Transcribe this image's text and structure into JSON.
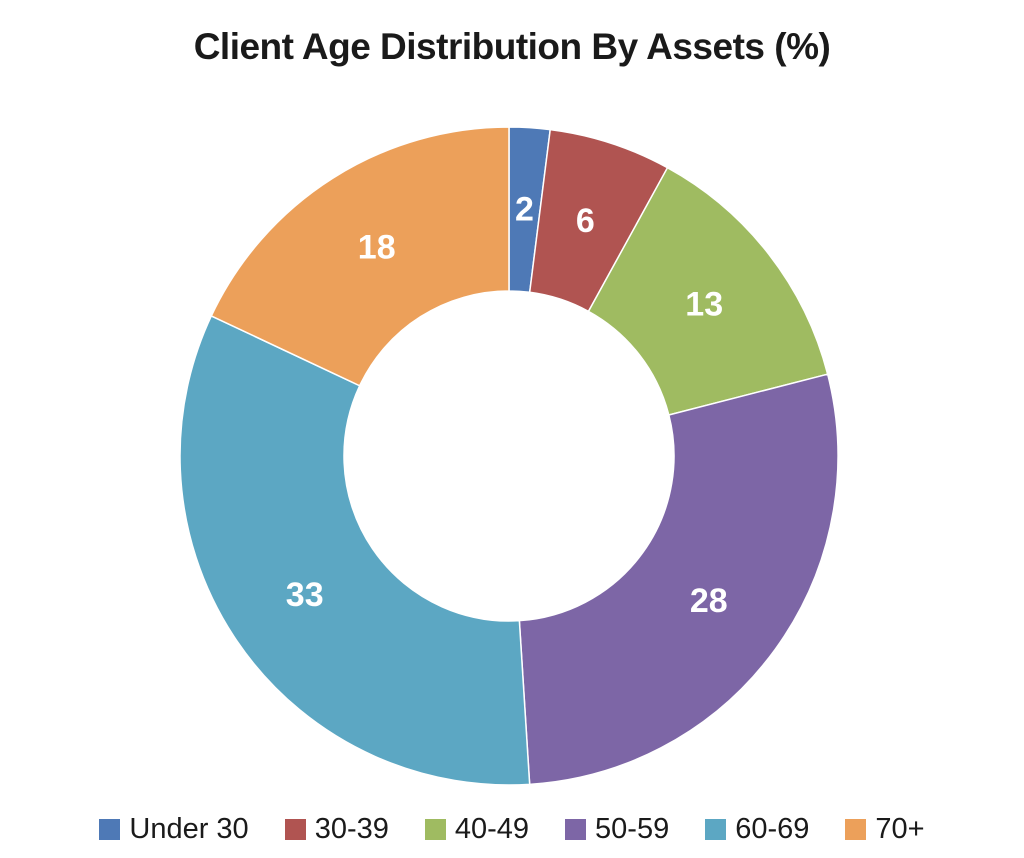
{
  "title": "Client Age Distribution By Assets (%)",
  "chart_data": {
    "type": "pie",
    "subtype": "donut",
    "title": "Client Age Distribution By Assets (%)",
    "unit": "%",
    "categories": [
      "Under 30",
      "30-39",
      "40-49",
      "50-59",
      "60-69",
      "70+"
    ],
    "values": [
      2,
      6,
      13,
      28,
      33,
      18
    ],
    "colors": [
      "#4E79B6",
      "#B05451",
      "#9FBB61",
      "#7D66A6",
      "#5CA7C3",
      "#ECA05A"
    ],
    "data_labels": [
      "2",
      "6",
      "13",
      "28",
      "33",
      "18"
    ],
    "data_label_color": "#FFFFFF",
    "start_angle_deg": 0,
    "direction": "clockwise",
    "inner_radius_ratio": 0.5,
    "legend_position": "bottom",
    "legend": [
      "Under 30",
      "30-39",
      "40-49",
      "50-59",
      "60-69",
      "70+"
    ]
  }
}
